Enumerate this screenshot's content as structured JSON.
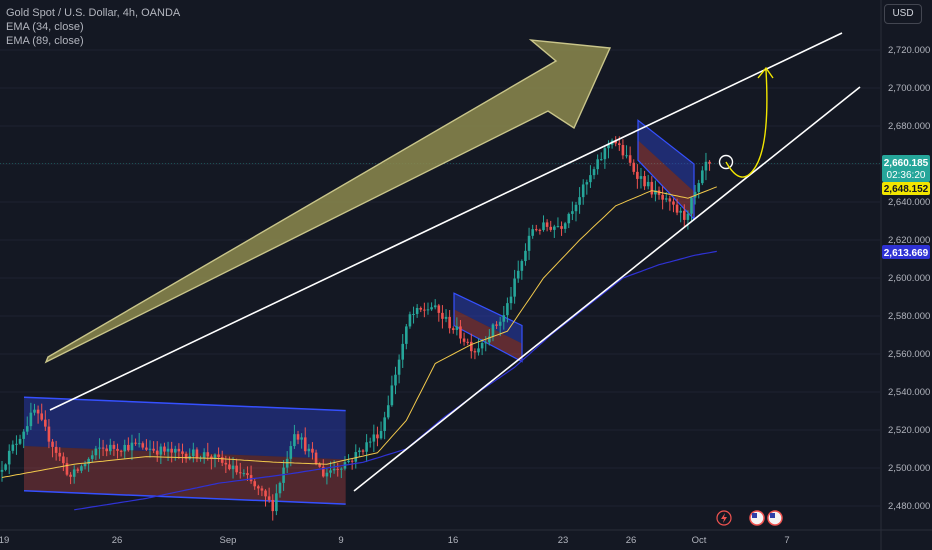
{
  "header": {
    "title": "Gold Spot / U.S. Dollar, 4h, OANDA",
    "indicator1": "EMA (34, close)",
    "indicator2": "EMA (89, close)",
    "currency": "USD"
  },
  "price_tags": {
    "last_price": "2,660.185",
    "countdown": "02:36:20",
    "ema34_value": "2,648.152",
    "ema89_value": "2,613.669"
  },
  "colors": {
    "background": "#141823",
    "up": "#26a69a",
    "down": "#ef5350",
    "ema34": "#f2c94c",
    "ema89": "#2f32d4",
    "arrow_fill": "#8c8a4d",
    "channel_blue": "#2a3fc0"
  },
  "chart_data": {
    "type": "candlestick",
    "title": "Gold Spot / U.S. Dollar, 4h, OANDA",
    "y_ticks": [
      2480,
      2500,
      2520,
      2540,
      2560,
      2580,
      2600,
      2620,
      2640,
      2660,
      2680,
      2700,
      2720
    ],
    "y_tick_labels": [
      "2,480.000",
      "2,500.000",
      "2,520.000",
      "2,540.000",
      "2,560.000",
      "2,580.000",
      "2,600.000",
      "2,620.000",
      "2,640.000",
      "2,660.000",
      "2,680.000",
      "2,700.000",
      "2,720.000"
    ],
    "ylim": [
      2475,
      2738
    ],
    "x_labels": [
      "19",
      "26",
      "Sep",
      "9",
      "16",
      "23",
      "26",
      "Oct",
      "7"
    ],
    "keypoints": [
      {
        "t": 0,
        "p": 2498
      },
      {
        "t": 10,
        "p": 2530
      },
      {
        "t": 20,
        "p": 2495
      },
      {
        "t": 28,
        "p": 2510
      },
      {
        "t": 38,
        "p": 2512
      },
      {
        "t": 48,
        "p": 2508
      },
      {
        "t": 58,
        "p": 2507
      },
      {
        "t": 68,
        "p": 2496
      },
      {
        "t": 76,
        "p": 2480
      },
      {
        "t": 82,
        "p": 2520
      },
      {
        "t": 90,
        "p": 2497
      },
      {
        "t": 98,
        "p": 2505
      },
      {
        "t": 106,
        "p": 2520
      },
      {
        "t": 114,
        "p": 2580
      },
      {
        "t": 120,
        "p": 2585
      },
      {
        "t": 128,
        "p": 2570
      },
      {
        "t": 132,
        "p": 2562
      },
      {
        "t": 140,
        "p": 2580
      },
      {
        "t": 148,
        "p": 2626
      },
      {
        "t": 156,
        "p": 2628
      },
      {
        "t": 164,
        "p": 2653
      },
      {
        "t": 170,
        "p": 2674
      },
      {
        "t": 176,
        "p": 2657
      },
      {
        "t": 182,
        "p": 2644
      },
      {
        "t": 186,
        "p": 2638
      },
      {
        "t": 190,
        "p": 2632
      },
      {
        "t": 194,
        "p": 2648
      },
      {
        "t": 196,
        "p": 2660
      }
    ],
    "ema34": [
      {
        "t": 0,
        "p": 2495
      },
      {
        "t": 20,
        "p": 2502
      },
      {
        "t": 40,
        "p": 2506
      },
      {
        "t": 60,
        "p": 2505
      },
      {
        "t": 76,
        "p": 2503
      },
      {
        "t": 90,
        "p": 2502
      },
      {
        "t": 104,
        "p": 2508
      },
      {
        "t": 112,
        "p": 2525
      },
      {
        "t": 120,
        "p": 2555
      },
      {
        "t": 130,
        "p": 2565
      },
      {
        "t": 140,
        "p": 2572
      },
      {
        "t": 150,
        "p": 2600
      },
      {
        "t": 160,
        "p": 2620
      },
      {
        "t": 170,
        "p": 2638
      },
      {
        "t": 180,
        "p": 2646
      },
      {
        "t": 190,
        "p": 2642
      },
      {
        "t": 198,
        "p": 2648
      }
    ],
    "ema89": [
      {
        "t": 20,
        "p": 2478
      },
      {
        "t": 40,
        "p": 2484
      },
      {
        "t": 60,
        "p": 2492
      },
      {
        "t": 80,
        "p": 2497
      },
      {
        "t": 100,
        "p": 2503
      },
      {
        "t": 112,
        "p": 2510
      },
      {
        "t": 122,
        "p": 2526
      },
      {
        "t": 132,
        "p": 2540
      },
      {
        "t": 142,
        "p": 2553
      },
      {
        "t": 152,
        "p": 2570
      },
      {
        "t": 162,
        "p": 2585
      },
      {
        "t": 172,
        "p": 2600
      },
      {
        "t": 182,
        "p": 2607
      },
      {
        "t": 192,
        "p": 2612
      },
      {
        "t": 198,
        "p": 2614
      }
    ],
    "last_price": 2660.185,
    "ema34_last": 2648.152,
    "ema89_last": 2613.669,
    "annotations": {
      "upper_trendline": [
        {
          "t": 0,
          "p": 2530
        },
        {
          "t": 230,
          "p": 2725
        }
      ],
      "lower_trendline": [
        {
          "t": 88,
          "p": 2481
        },
        {
          "t": 235,
          "p": 2702
        }
      ],
      "range_box": {
        "t0": 0,
        "t1": 88,
        "top_start": 2532,
        "top_end": 2526,
        "bottom_start": 2488,
        "bottom_end": 2481,
        "mid": 2508
      },
      "flag1": {
        "t0": 117,
        "t1": 135,
        "top_start": 2592,
        "top_end": 2575,
        "bottom_start": 2575,
        "bottom_end": 2556
      },
      "flag2": {
        "t0": 167,
        "t1": 185,
        "top_start": 2683,
        "top_end": 2660,
        "bottom_start": 2662,
        "bottom_end": 2631
      },
      "projection": [
        {
          "t": 196,
          "p": 2660
        },
        {
          "t": 202,
          "p": 2651
        },
        {
          "t": 208,
          "p": 2670
        },
        {
          "t": 212,
          "p": 2710
        }
      ],
      "big_arrow": {
        "t0": 12,
        "p0": 2556,
        "t1": 160,
        "p1": 2720
      }
    }
  }
}
